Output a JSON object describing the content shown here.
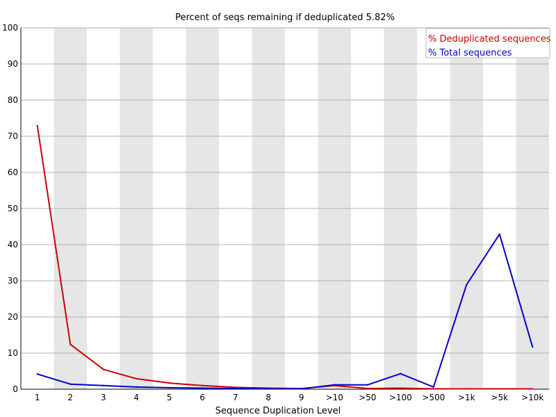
{
  "chart_data": {
    "type": "line",
    "title": "Percent of seqs remaining if deduplicated 5.82%",
    "xlabel": "Sequence Duplication Level",
    "ylabel": "",
    "ylim": [
      0,
      100
    ],
    "yticks": [
      0,
      10,
      20,
      30,
      40,
      50,
      60,
      70,
      80,
      90,
      100
    ],
    "categories": [
      "1",
      "2",
      "3",
      "4",
      "5",
      "6",
      "7",
      "8",
      "9",
      ">10",
      ">50",
      ">100",
      ">500",
      ">1k",
      ">5k",
      ">10k"
    ],
    "grid": true,
    "alternating_column_shading": true,
    "legend_position": "top-right",
    "series": [
      {
        "name": "% Deduplicated sequences",
        "color": "#cc0000",
        "values": [
          72.9,
          12.4,
          5.5,
          2.9,
          1.7,
          1.0,
          0.5,
          0.3,
          0.2,
          1.0,
          0.2,
          0.3,
          0.1,
          0.1,
          0.1,
          0.1
        ]
      },
      {
        "name": "% Total sequences",
        "color": "#0000cc",
        "values": [
          4.2,
          1.4,
          1.0,
          0.6,
          0.4,
          0.3,
          0.2,
          0.1,
          0.1,
          1.2,
          1.2,
          4.3,
          0.6,
          28.9,
          42.9,
          11.7
        ]
      }
    ]
  }
}
